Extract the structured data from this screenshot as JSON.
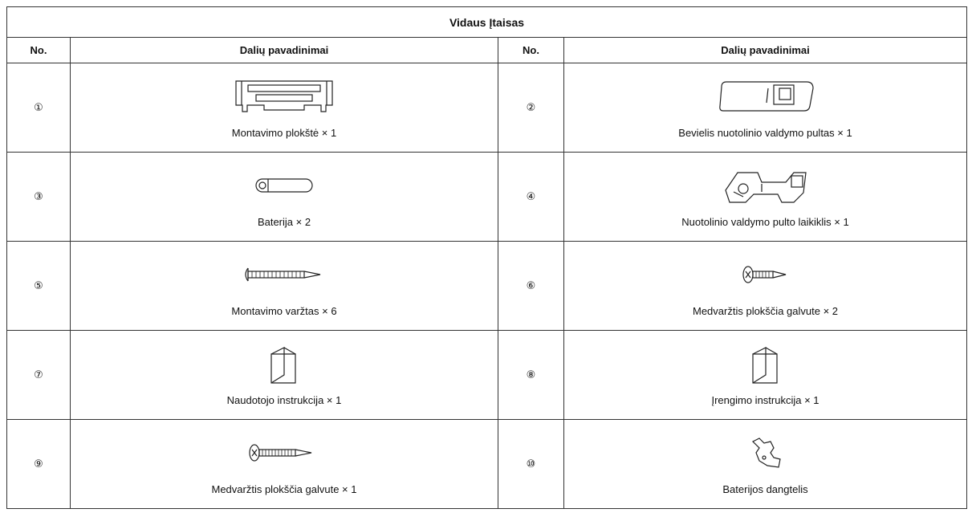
{
  "table": {
    "title": "Vidaus Įtaisas",
    "headers": [
      "No.",
      "Dalių pavadinimai",
      "No.",
      "Dalių pavadinimai"
    ],
    "rows": [
      [
        {
          "number": "①",
          "name": "Montavimo plokštė × 1"
        },
        {
          "number": "②",
          "name": "Bevielis nuotolinio valdymo pultas × 1"
        }
      ],
      [
        {
          "number": "③",
          "name": "Baterija × 2"
        },
        {
          "number": "④",
          "name": "Nuotolinio valdymo pulto laikiklis × 1"
        }
      ],
      [
        {
          "number": "⑤",
          "name": "Montavimo varžtas × 6"
        },
        {
          "number": "⑥",
          "name": "Medvaržtis plokščia galvute × 2"
        }
      ],
      [
        {
          "number": "⑦",
          "name": "Naudotojo instrukcija × 1"
        },
        {
          "number": "⑧",
          "name": "Įrengimo instrukcija × 1"
        }
      ],
      [
        {
          "number": "⑨",
          "name": "Medvaržtis plokščia galvute × 1"
        },
        {
          "number": "⑩",
          "name": "Baterijos dangtelis"
        }
      ]
    ]
  }
}
